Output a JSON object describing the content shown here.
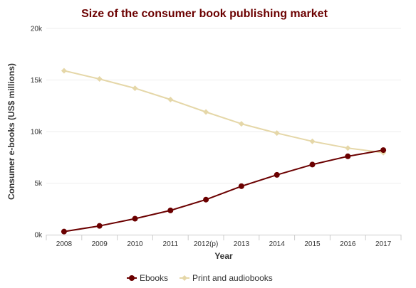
{
  "chart_data": {
    "type": "line",
    "title": "Size of the consumer book publishing market",
    "xlabel": "Year",
    "ylabel": "Consumer e-books (US$ millions)",
    "categories": [
      "2008",
      "2009",
      "2010",
      "2011",
      "2012(p)",
      "2013",
      "2014",
      "2015",
      "2016",
      "2017"
    ],
    "y_ticks": [
      "0k",
      "5k",
      "10k",
      "15k",
      "20k"
    ],
    "ylim": [
      0,
      20000
    ],
    "grid": true,
    "legend_position": "bottom-center",
    "series": [
      {
        "name": "Ebooks",
        "color": "#6b0000",
        "marker": "circle",
        "values": [
          300,
          850,
          1550,
          2350,
          3400,
          4700,
          5800,
          6800,
          7600,
          8200
        ]
      },
      {
        "name": "Print and audiobooks",
        "color": "#e5d7a8",
        "marker": "diamond",
        "values": [
          15900,
          15100,
          14200,
          13100,
          11900,
          10750,
          9850,
          9050,
          8400,
          7950
        ]
      }
    ],
    "colors": {
      "title": "#6b0000",
      "grid": "#eeeeee",
      "axis": "#cccccc"
    }
  }
}
